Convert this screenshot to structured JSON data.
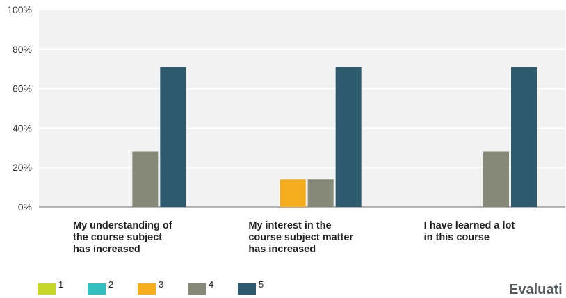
{
  "chart_data": {
    "type": "bar",
    "categories": [
      [
        "My understanding of",
        "the course subject",
        "has increased"
      ],
      [
        "My interest in the",
        "course subject matter",
        "has increased"
      ],
      [
        "I have learned a lot",
        "in this course"
      ]
    ],
    "series": [
      {
        "name": "1",
        "color": "#c5d62b",
        "values": [
          0,
          0,
          0
        ]
      },
      {
        "name": "2",
        "color": "#33bfbf",
        "values": [
          0,
          0,
          0
        ]
      },
      {
        "name": "3",
        "color": "#f4ad1f",
        "values": [
          0,
          14,
          0
        ]
      },
      {
        "name": "4",
        "color": "#878978",
        "values": [
          28,
          14,
          28
        ]
      },
      {
        "name": "5",
        "color": "#2e5b6e",
        "values": [
          71,
          71,
          71
        ]
      }
    ],
    "y_ticks": [
      "0%",
      "20%",
      "40%",
      "60%",
      "80%",
      "100%"
    ],
    "ylim": [
      0,
      100
    ],
    "grid": true,
    "legend": "bottom-left"
  },
  "footer": {
    "corner_text": "Evaluati"
  }
}
